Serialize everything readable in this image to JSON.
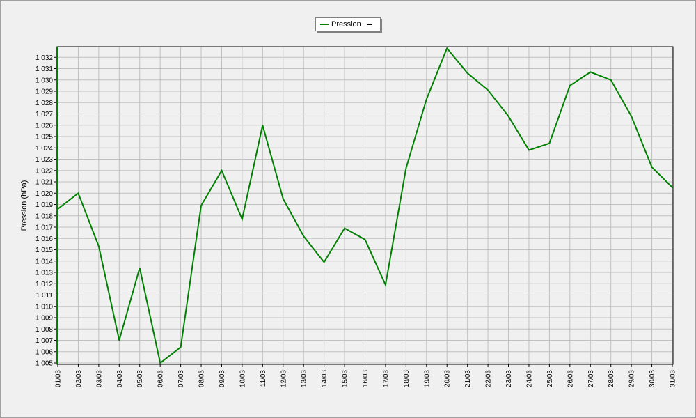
{
  "chart_data": {
    "type": "line",
    "ylabel": "Pression (hPa)",
    "ylim": [
      1005,
      1033
    ],
    "legend_position": "top-center",
    "grid": true,
    "categories": [
      "01/03",
      "02/03",
      "03/03",
      "04/03",
      "05/03",
      "06/03",
      "07/03",
      "08/03",
      "09/03",
      "10/03",
      "11/03",
      "12/03",
      "13/03",
      "14/03",
      "15/03",
      "16/03",
      "17/03",
      "18/03",
      "19/03",
      "20/03",
      "21/03",
      "22/03",
      "23/03",
      "24/03",
      "25/03",
      "26/03",
      "27/03",
      "28/03",
      "29/03",
      "30/03",
      "31/03"
    ],
    "y_ticks": [
      "1 005",
      "1 006",
      "1 007",
      "1 008",
      "1 009",
      "1 010",
      "1 011",
      "1 012",
      "1 013",
      "1 014",
      "1 015",
      "1 016",
      "1 017",
      "1 018",
      "1 019",
      "1 020",
      "1 021",
      "1 022",
      "1 023",
      "1 024",
      "1 025",
      "1 026",
      "1 027",
      "1 028",
      "1 029",
      "1 030",
      "1 031",
      "1 032"
    ],
    "series": [
      {
        "name": "Pression",
        "color": "#008000",
        "values": [
          1018.6,
          1020.0,
          1015.3,
          1007.0,
          1013.4,
          1005.0,
          1006.4,
          1018.9,
          1022.0,
          1017.7,
          1026.0,
          1019.5,
          1016.2,
          1013.9,
          1016.9,
          1015.9,
          1011.9,
          1022.2,
          1028.3,
          1032.8,
          1030.6,
          1029.1,
          1026.8,
          1023.8,
          1024.4,
          1029.5,
          1030.7,
          1030.0,
          1026.8,
          1022.3,
          1020.5
        ]
      }
    ]
  }
}
